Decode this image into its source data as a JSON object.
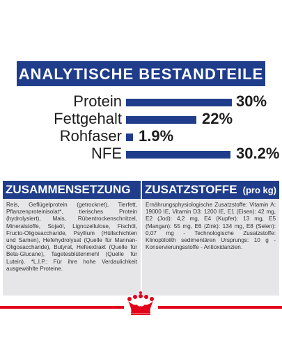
{
  "header": {
    "title": "ANALYTISCHE BESTANDTEILE"
  },
  "analytics": {
    "rows": [
      {
        "label": "Protein",
        "value": "30%",
        "fraction": 0.3
      },
      {
        "label": "Fettgehalt",
        "value": "22%",
        "fraction": 0.22
      },
      {
        "label": "Rohfaser",
        "value": "1.9%",
        "fraction": 0.019
      },
      {
        "label": "NFE",
        "value": "30.2%",
        "fraction": 0.302
      }
    ]
  },
  "composition": {
    "title": "ZUSAMMENSETZUNG",
    "text": "Reis, Geflügelprotein (getrocknet), Tierfett, Pflanzenproteinisolat*, tierisches Protein (hydrolysiert), Mais, Rübentrockenschnitzel, Mineralstoffe, Sojaöl, Lignozellulose, Fischöl, Fructo-Oligosaccharide, Psyllium (Hüllschichten und Samen), Hefehydrolysat (Quelle für Mannan-Oligosaccharide), Butyrat, Hefeextrakt (Quelle für Beta-Glucane), Tagetesblütenmehl (Quelle für Lutein). *L.I.P.: Für ihre hohe Verdaulichkeit ausgewählte Proteine."
  },
  "additives": {
    "title": "ZUSATZSTOFFE",
    "unit": "(pro kg)",
    "text": "Ernährungsphysiologische Zusatzstoffe: Vitamin A: 19000 IE, Vitamin D3: 1200 IE, E1 (Eisen): 42 mg, E2 (Jod): 4,2 mg, E4 (Kupfer): 13 mg, E5 (Mangan): 55 mg, E6 (Zink): 134 mg, E8 (Selen): 0,07 mg - Technologische Zusatzstoffe: Klinoptilolith sedimentären Ursprungs: 10 g - Konservierungsstoffe - Antioxidanzien."
  },
  "colors": {
    "brand_blue": "#1f3d8b",
    "brand_red": "#e2001a",
    "panel_gray": "#e6e6e8"
  },
  "logo": {
    "icon": "crown-icon"
  }
}
